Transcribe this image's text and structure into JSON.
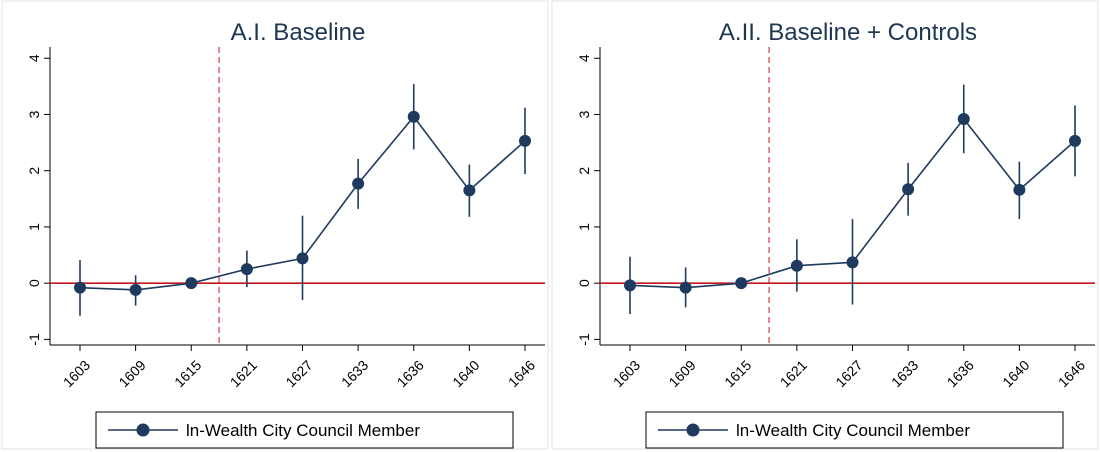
{
  "chart_data": [
    {
      "type": "line",
      "title": "A.I. Baseline",
      "xlabel": "",
      "ylabel": "",
      "categories": [
        "1603",
        "1609",
        "1615",
        "1621",
        "1627",
        "1633",
        "1636",
        "1640",
        "1646"
      ],
      "ylim": [
        -1.1,
        4.2
      ],
      "yticks": [
        "-1",
        "0",
        "1",
        "2",
        "3",
        "4"
      ],
      "reference_line_y": 0,
      "reference_line_after_category": "1615",
      "grid": false,
      "legend_position": "bottom",
      "series": [
        {
          "name": "ln-Wealth City Council Member",
          "color": "#1f3a5f",
          "values": [
            -0.08,
            -0.12,
            0.0,
            0.25,
            0.44,
            1.77,
            2.96,
            1.65,
            2.53
          ],
          "ci_low": [
            -0.58,
            -0.4,
            0.0,
            -0.07,
            -0.3,
            1.32,
            2.38,
            1.18,
            1.94
          ],
          "ci_high": [
            0.41,
            0.14,
            0.0,
            0.58,
            1.2,
            2.21,
            3.54,
            2.11,
            3.12
          ]
        }
      ]
    },
    {
      "type": "line",
      "title": "A.II. Baseline + Controls",
      "xlabel": "",
      "ylabel": "",
      "categories": [
        "1603",
        "1609",
        "1615",
        "1621",
        "1627",
        "1633",
        "1636",
        "1640",
        "1646"
      ],
      "ylim": [
        -1.1,
        4.2
      ],
      "yticks": [
        "-1",
        "0",
        "1",
        "2",
        "3",
        "4"
      ],
      "reference_line_y": 0,
      "reference_line_after_category": "1615",
      "grid": false,
      "legend_position": "bottom",
      "series": [
        {
          "name": "ln-Wealth City Council Member",
          "color": "#1f3a5f",
          "values": [
            -0.04,
            -0.08,
            0.0,
            0.31,
            0.37,
            1.67,
            2.92,
            1.66,
            2.53
          ],
          "ci_low": [
            -0.55,
            -0.43,
            0.0,
            -0.15,
            -0.38,
            1.2,
            2.31,
            1.14,
            1.9
          ],
          "ci_high": [
            0.47,
            0.28,
            0.0,
            0.78,
            1.14,
            2.14,
            3.53,
            2.16,
            3.16
          ]
        }
      ]
    }
  ]
}
